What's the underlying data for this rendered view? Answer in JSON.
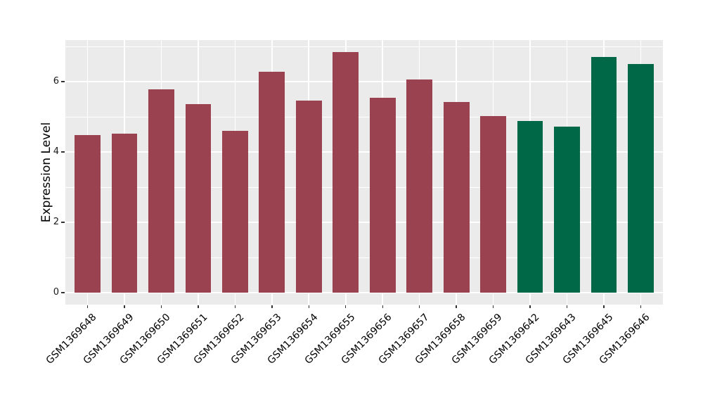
{
  "chart_data": {
    "type": "bar",
    "title": "",
    "ylabel": "Expression Level",
    "xlabel": "",
    "categories": [
      "GSM1369648",
      "GSM1369649",
      "GSM1369650",
      "GSM1369651",
      "GSM1369652",
      "GSM1369653",
      "GSM1369654",
      "GSM1369655",
      "GSM1369656",
      "GSM1369657",
      "GSM1369658",
      "GSM1369659",
      "GSM1369642",
      "GSM1369643",
      "GSM1369645",
      "GSM1369646"
    ],
    "values": [
      4.48,
      4.52,
      5.78,
      5.37,
      4.6,
      6.29,
      5.47,
      6.84,
      5.54,
      6.07,
      5.43,
      5.03,
      4.89,
      4.73,
      6.7,
      6.5
    ],
    "bar_colors": [
      "#9A424F",
      "#9A424F",
      "#9A424F",
      "#9A424F",
      "#9A424F",
      "#9A424F",
      "#9A424F",
      "#9A424F",
      "#9A424F",
      "#9A424F",
      "#9A424F",
      "#9A424F",
      "#006747",
      "#006747",
      "#006747",
      "#006747"
    ],
    "group_colors": {
      "group1": "#9A424F",
      "group2": "#006747"
    },
    "ylim": [
      -0.34,
      7.18
    ],
    "yticks": [
      0,
      2,
      4,
      6
    ],
    "minor_yticks": [
      1,
      3,
      5,
      7
    ],
    "grid": "on",
    "legend": "none",
    "plot_bg": "#EBEBEB",
    "grid_color": "#FFFFFF",
    "tick_mark_color": "#333333",
    "tick_label_color": "#1a1a1a"
  }
}
